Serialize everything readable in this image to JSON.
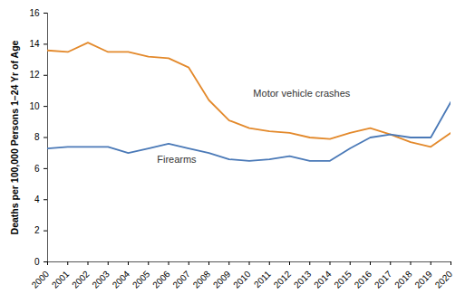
{
  "chart_data": {
    "type": "line",
    "y_label": "Deaths per 100,000 Persons 1–24 Yr of Age",
    "x": [
      2000,
      2001,
      2002,
      2003,
      2004,
      2005,
      2006,
      2007,
      2008,
      2009,
      2010,
      2011,
      2012,
      2013,
      2014,
      2015,
      2016,
      2017,
      2018,
      2019,
      2020
    ],
    "series": [
      {
        "name": "Motor vehicle crashes",
        "color": "#e3892b",
        "values": [
          13.6,
          13.5,
          14.1,
          13.5,
          13.5,
          13.2,
          13.1,
          12.5,
          10.4,
          9.1,
          8.6,
          8.4,
          8.3,
          8.0,
          7.9,
          8.3,
          8.6,
          8.2,
          7.7,
          7.4,
          8.3
        ]
      },
      {
        "name": "Firearms",
        "color": "#4a79b7",
        "values": [
          7.3,
          7.4,
          7.4,
          7.4,
          7.0,
          7.3,
          7.6,
          7.3,
          7.0,
          6.6,
          6.5,
          6.6,
          6.8,
          6.5,
          6.5,
          7.3,
          8.0,
          8.2,
          8.0,
          8.0,
          10.3
        ]
      }
    ],
    "annotations": [
      {
        "text": "Motor vehicle crashes",
        "x": 2012.6,
        "y": 10.8
      },
      {
        "text": "Firearms",
        "x": 2006.4,
        "y": 6.6
      }
    ],
    "xlim": [
      2000,
      2020
    ],
    "xticks": [
      2000,
      2001,
      2002,
      2003,
      2004,
      2005,
      2006,
      2007,
      2008,
      2009,
      2010,
      2011,
      2012,
      2013,
      2014,
      2015,
      2016,
      2017,
      2018,
      2019,
      2020
    ],
    "ylim": [
      0,
      16
    ],
    "yticks": [
      0,
      2,
      4,
      6,
      8,
      10,
      12,
      14,
      16
    ],
    "grid": false
  }
}
